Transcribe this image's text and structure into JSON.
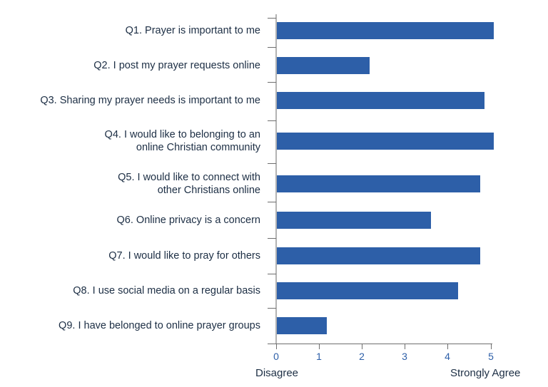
{
  "chart_data": {
    "type": "bar",
    "orientation": "horizontal",
    "title": "",
    "xlabel": "",
    "ylabel": "",
    "xlim": [
      0,
      5
    ],
    "x_ticks": [
      "0",
      "1",
      "2",
      "3",
      "4",
      "5"
    ],
    "x_axis_end_labels": {
      "min": "Disagree",
      "max": "Strongly Agree"
    },
    "grid": false,
    "legend": null,
    "bar_color": "#2d5fa8",
    "categories": [
      "Q1.  Prayer is important to me",
      "Q2.  I post my prayer requests online",
      "Q3.  Sharing my prayer needs is important to me",
      "Q4.  I would like to belonging to an\nonline Christian community",
      "Q5.  I would like to connect with\nother Christians online",
      "Q6.  Online privacy is a concern",
      "Q7.  I would like to pray for others",
      "Q8.  I use social media on a regular basis",
      "Q9.  I have belonged to online prayer groups "
    ],
    "values": [
      5.05,
      2.16,
      4.84,
      5.05,
      4.74,
      3.59,
      4.74,
      4.23,
      1.16
    ]
  }
}
